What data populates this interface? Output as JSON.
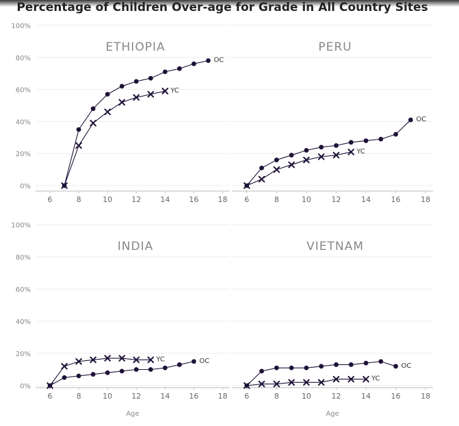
{
  "title": "Percentage of Children Over-age for Grade in All Country Sites",
  "colors": {
    "series": "#1f1238",
    "grid": "#eeeeee",
    "axis": "#bbbbbb",
    "text": "#888888"
  },
  "chart_data": {
    "type": "line",
    "title": "Percentage of Children Over-age for Grade in All Country Sites",
    "xlabel": "Age",
    "ylabel": "",
    "xlim": [
      5,
      18.5
    ],
    "ylim": [
      0,
      100
    ],
    "xticks": [
      6,
      8,
      10,
      12,
      14,
      16,
      18
    ],
    "yticks": [
      0,
      20,
      40,
      60,
      80,
      100
    ],
    "grid": true,
    "panels": [
      {
        "name": "ETHIOPIA",
        "series": [
          {
            "name": "OC",
            "marker": "circle",
            "x": [
              7,
              8,
              9,
              10,
              11,
              12,
              13,
              14,
              15,
              16,
              17
            ],
            "y": [
              0,
              35,
              48,
              57,
              62,
              65,
              67,
              71,
              73,
              76,
              78
            ]
          },
          {
            "name": "YC",
            "marker": "x",
            "x": [
              7,
              8,
              9,
              10,
              11,
              12,
              13,
              14
            ],
            "y": [
              0,
              25,
              39,
              46,
              52,
              55,
              57,
              59
            ]
          }
        ]
      },
      {
        "name": "PERU",
        "series": [
          {
            "name": "OC",
            "marker": "circle",
            "x": [
              6,
              7,
              8,
              9,
              10,
              11,
              12,
              13,
              14,
              15,
              16,
              17
            ],
            "y": [
              0,
              11,
              16,
              19,
              22,
              24,
              25,
              27,
              28,
              29,
              32,
              41
            ]
          },
          {
            "name": "YC",
            "marker": "x",
            "x": [
              6,
              7,
              8,
              9,
              10,
              11,
              12,
              13
            ],
            "y": [
              0,
              4,
              10,
              13,
              16,
              18,
              19,
              21
            ]
          }
        ]
      },
      {
        "name": "INDIA",
        "series": [
          {
            "name": "OC",
            "marker": "circle",
            "x": [
              6,
              7,
              8,
              9,
              10,
              11,
              12,
              13,
              14,
              15,
              16
            ],
            "y": [
              0,
              5,
              6,
              7,
              8,
              9,
              10,
              10,
              11,
              13,
              15
            ]
          },
          {
            "name": "YC",
            "marker": "x",
            "x": [
              6,
              7,
              8,
              9,
              10,
              11,
              12,
              13
            ],
            "y": [
              0,
              12,
              15,
              16,
              17,
              17,
              16,
              16
            ]
          }
        ]
      },
      {
        "name": "VIETNAM",
        "series": [
          {
            "name": "OC",
            "marker": "circle",
            "x": [
              6,
              7,
              8,
              9,
              10,
              11,
              12,
              13,
              14,
              15,
              16
            ],
            "y": [
              0,
              9,
              11,
              11,
              11,
              12,
              13,
              13,
              14,
              15,
              12
            ]
          },
          {
            "name": "YC",
            "marker": "x",
            "x": [
              6,
              7,
              8,
              9,
              10,
              11,
              12,
              13,
              14
            ],
            "y": [
              0,
              1,
              1,
              2,
              2,
              2,
              4,
              4,
              4
            ]
          }
        ]
      }
    ]
  }
}
